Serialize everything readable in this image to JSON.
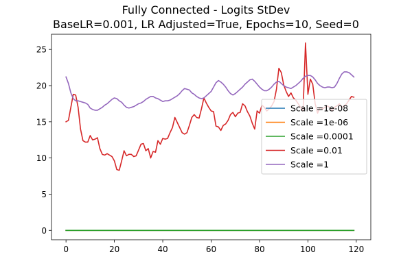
{
  "chart_data": {
    "type": "line",
    "title": "Fully Connected - Logits StDev",
    "subtitle": "BaseLR=0.001, LR Adjusted=True, Epochs=10, Seed=0",
    "xlabel": "",
    "ylabel": "",
    "xlim": [
      -6,
      126
    ],
    "ylim": [
      -1.3,
      27.1
    ],
    "xticks": [
      0,
      20,
      40,
      60,
      80,
      100,
      120
    ],
    "yticks": [
      0,
      5,
      10,
      15,
      20,
      25
    ],
    "grid": false,
    "legend_position": "center-right",
    "series": [
      {
        "name": "Scale =1e-08",
        "color": "#1f77b4",
        "x": [
          0,
          119
        ],
        "values": [
          0,
          0
        ]
      },
      {
        "name": "Scale =1e-06",
        "color": "#ff7f0e",
        "x": [
          0,
          119
        ],
        "values": [
          0,
          0
        ]
      },
      {
        "name": "Scale =0.0001",
        "color": "#2ca02c",
        "x": [
          0,
          119
        ],
        "values": [
          0,
          0
        ]
      },
      {
        "name": "Scale =0.01",
        "color": "#d62728",
        "x": [
          0,
          1,
          2,
          3,
          4,
          5,
          6,
          7,
          8,
          9,
          10,
          11,
          12,
          13,
          14,
          15,
          16,
          17,
          18,
          19,
          20,
          21,
          22,
          23,
          24,
          25,
          26,
          27,
          28,
          29,
          30,
          31,
          32,
          33,
          34,
          35,
          36,
          37,
          38,
          39,
          40,
          41,
          42,
          43,
          44,
          45,
          46,
          47,
          48,
          49,
          50,
          51,
          52,
          53,
          54,
          55,
          56,
          57,
          58,
          59,
          60,
          61,
          62,
          63,
          64,
          65,
          66,
          67,
          68,
          69,
          70,
          71,
          72,
          73,
          74,
          75,
          76,
          77,
          78,
          79,
          80,
          81,
          82,
          83,
          84,
          85,
          86,
          87,
          88,
          89,
          90,
          91,
          92,
          93,
          94,
          95,
          96,
          97,
          98,
          99,
          100,
          101,
          102,
          103,
          104,
          105,
          106,
          107,
          108,
          109,
          110,
          111,
          112,
          113,
          114,
          115,
          116,
          117,
          118,
          119
        ],
        "values": [
          15.0,
          15.2,
          17.0,
          18.8,
          18.7,
          17.0,
          14.0,
          12.4,
          12.2,
          12.2,
          13.1,
          12.5,
          12.6,
          12.8,
          11.3,
          10.5,
          10.4,
          10.6,
          10.4,
          10.2,
          9.6,
          8.4,
          8.3,
          9.6,
          11.0,
          10.3,
          10.5,
          10.5,
          10.2,
          10.3,
          11.1,
          11.9,
          12.0,
          11.0,
          11.3,
          10.0,
          10.9,
          10.8,
          12.4,
          11.9,
          12.7,
          12.6,
          12.7,
          13.5,
          14.2,
          15.6,
          14.9,
          14.2,
          13.5,
          13.3,
          13.5,
          14.5,
          15.6,
          16.0,
          15.6,
          15.5,
          16.8,
          18.3,
          17.6,
          17.0,
          16.5,
          16.4,
          14.4,
          14.3,
          13.8,
          14.5,
          14.7,
          15.2,
          16.0,
          16.3,
          15.7,
          16.2,
          16.3,
          17.5,
          17.2,
          16.4,
          15.8,
          14.8,
          14.0,
          16.5,
          16.2,
          17.3,
          17.0,
          16.5,
          16.8,
          17.2,
          17.8,
          19.5,
          22.4,
          21.8,
          20.1,
          19.2,
          18.5,
          19.0,
          18.3,
          18.0,
          17.5,
          17.0,
          16.5,
          25.9,
          18.8,
          20.9,
          20.2,
          17.5,
          16.2,
          17.0,
          16.8,
          17.0,
          17.2,
          17.0,
          16.5,
          17.0,
          17.2,
          17.5,
          17.0,
          17.2,
          17.5,
          18.0,
          18.5,
          18.4
        ]
      },
      {
        "name": "Scale =1",
        "color": "#9467bd",
        "x": [
          0,
          1,
          2,
          3,
          4,
          5,
          6,
          7,
          8,
          9,
          10,
          11,
          12,
          13,
          14,
          15,
          16,
          17,
          18,
          19,
          20,
          21,
          22,
          23,
          24,
          25,
          26,
          27,
          28,
          29,
          30,
          31,
          32,
          33,
          34,
          35,
          36,
          37,
          38,
          39,
          40,
          41,
          42,
          43,
          44,
          45,
          46,
          47,
          48,
          49,
          50,
          51,
          52,
          53,
          54,
          55,
          56,
          57,
          58,
          59,
          60,
          61,
          62,
          63,
          64,
          65,
          66,
          67,
          68,
          69,
          70,
          71,
          72,
          73,
          74,
          75,
          76,
          77,
          78,
          79,
          80,
          81,
          82,
          83,
          84,
          85,
          86,
          87,
          88,
          89,
          90,
          91,
          92,
          93,
          94,
          95,
          96,
          97,
          98,
          99,
          100,
          101,
          102,
          103,
          104,
          105,
          106,
          107,
          108,
          109,
          110,
          111,
          112,
          113,
          114,
          115,
          116,
          117,
          118,
          119
        ],
        "values": [
          21.2,
          20.3,
          19.0,
          18.2,
          17.9,
          17.9,
          17.8,
          17.7,
          17.6,
          17.4,
          16.9,
          16.7,
          16.6,
          16.6,
          16.8,
          17.0,
          17.3,
          17.5,
          17.8,
          18.1,
          18.3,
          18.2,
          17.9,
          17.7,
          17.3,
          17.0,
          16.9,
          17.0,
          17.1,
          17.3,
          17.5,
          17.6,
          17.8,
          18.1,
          18.3,
          18.5,
          18.5,
          18.3,
          18.2,
          18.0,
          17.8,
          17.9,
          17.9,
          18.0,
          18.2,
          18.4,
          18.6,
          18.9,
          19.3,
          19.6,
          19.5,
          19.4,
          19.0,
          18.8,
          18.5,
          18.3,
          18.2,
          18.3,
          18.6,
          18.9,
          19.2,
          19.8,
          20.4,
          20.7,
          20.5,
          20.2,
          19.8,
          19.3,
          18.9,
          18.7,
          18.9,
          19.2,
          19.5,
          19.8,
          20.2,
          20.5,
          20.8,
          20.9,
          20.6,
          20.2,
          19.8,
          19.5,
          19.3,
          19.3,
          19.5,
          19.8,
          20.2,
          20.5,
          20.6,
          20.3,
          20.0,
          19.8,
          19.7,
          19.6,
          19.8,
          20.0,
          20.3,
          20.6,
          21.0,
          21.3,
          21.4,
          21.4,
          21.2,
          20.8,
          20.3,
          20.0,
          19.8,
          19.7,
          19.8,
          19.8,
          19.7,
          19.8,
          20.3,
          21.0,
          21.6,
          21.9,
          21.9,
          21.8,
          21.5,
          21.2
        ]
      }
    ]
  }
}
